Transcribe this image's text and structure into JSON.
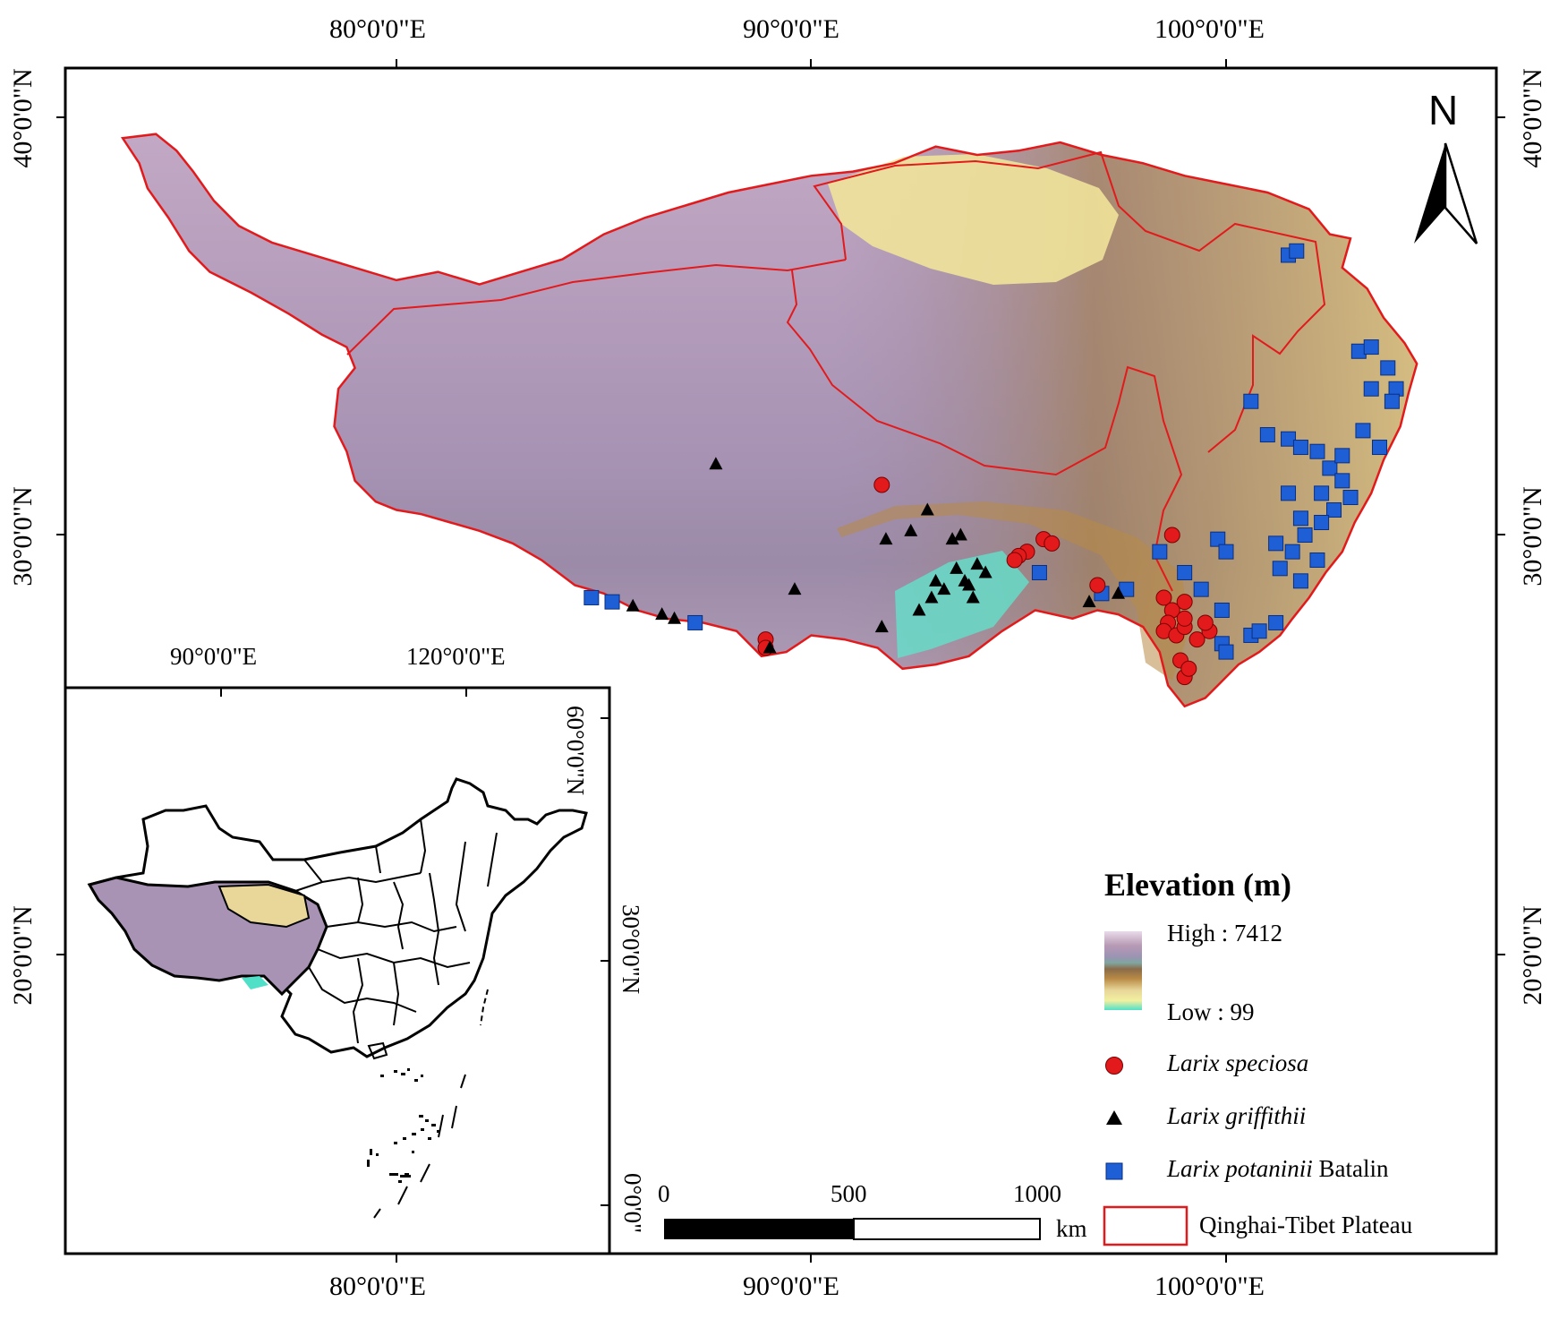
{
  "map": {
    "grid": {
      "lon_labels": [
        "80°0'0\"E",
        "90°0'0\"E",
        "100°0'0\"E"
      ],
      "lat_labels": [
        "40°0'0\"N",
        "30°0'0\"N",
        "20°0'0\"N"
      ]
    },
    "north_arrow": {
      "label": "N"
    },
    "inset": {
      "lon_labels": [
        "90°0'0\"E",
        "120°0'0\"E"
      ],
      "lat_labels": [
        "60°0'0\"N",
        "30°0'0\"N",
        "0°0'0\""
      ]
    },
    "scale_bar": {
      "labels": [
        "0",
        "500",
        "1000"
      ],
      "unit": "km"
    },
    "legend": {
      "title": "Elevation (m)",
      "high_label": "High : 7412",
      "low_label": "Low : 99",
      "ramp_colors": [
        "#dcc9dc",
        "#b79ab5",
        "#9c93b3",
        "#8aa6a0",
        "#8a6c4a",
        "#b88a45",
        "#e8d79a",
        "#f2f0a0",
        "#7fe3c8"
      ],
      "species": [
        {
          "italic": "Larix speciosa",
          "suffix": "",
          "color": "#e31a1c",
          "shape": "circle"
        },
        {
          "italic": "Larix griffithii",
          "suffix": "",
          "color": "#000000",
          "shape": "triangle"
        },
        {
          "italic": "Larix potaninii",
          "suffix": " Batalin",
          "color": "#1f5fd6",
          "shape": "square"
        }
      ],
      "boundary_label": "Qinghai-Tibet Plateau",
      "boundary_color": "#e31a1c"
    },
    "occurrences": {
      "Larix speciosa": [
        [
          91.7,
          31.2
        ],
        [
          95.6,
          29.9
        ],
        [
          95.8,
          29.8
        ],
        [
          95.2,
          29.6
        ],
        [
          95.0,
          29.5
        ],
        [
          94.9,
          29.4
        ],
        [
          96.9,
          28.8
        ],
        [
          98.7,
          30.0
        ],
        [
          98.5,
          28.5
        ],
        [
          98.7,
          28.2
        ],
        [
          98.6,
          27.9
        ],
        [
          98.5,
          27.7
        ],
        [
          98.8,
          27.6
        ],
        [
          99.0,
          28.4
        ],
        [
          99.0,
          27.8
        ],
        [
          99.3,
          27.5
        ],
        [
          99.6,
          27.7
        ],
        [
          98.9,
          27.0
        ],
        [
          99.0,
          26.6
        ],
        [
          99.1,
          26.8
        ],
        [
          88.9,
          27.5
        ],
        [
          88.9,
          27.3
        ],
        [
          99.0,
          28.0
        ],
        [
          99.5,
          27.9
        ]
      ],
      "Larix griffithii": [
        [
          87.7,
          31.7
        ],
        [
          92.8,
          30.6
        ],
        [
          92.4,
          30.1
        ],
        [
          91.8,
          29.9
        ],
        [
          93.4,
          29.9
        ],
        [
          93.6,
          30.0
        ],
        [
          93.5,
          29.2
        ],
        [
          93.0,
          28.9
        ],
        [
          93.2,
          28.7
        ],
        [
          93.8,
          28.8
        ],
        [
          94.2,
          29.1
        ],
        [
          89.6,
          28.7
        ],
        [
          92.6,
          28.2
        ],
        [
          92.9,
          28.5
        ],
        [
          93.9,
          28.5
        ],
        [
          85.7,
          28.3
        ],
        [
          86.4,
          28.1
        ],
        [
          86.7,
          28.0
        ],
        [
          91.7,
          27.8
        ],
        [
          89.0,
          27.3
        ],
        [
          96.7,
          28.4
        ],
        [
          97.4,
          28.6
        ],
        [
          93.7,
          28.9
        ],
        [
          94.0,
          29.3
        ]
      ],
      "Larix potaninii": [
        [
          101.5,
          36.7
        ],
        [
          101.7,
          36.8
        ],
        [
          103.2,
          34.4
        ],
        [
          103.5,
          34.5
        ],
        [
          103.9,
          34.0
        ],
        [
          104.1,
          33.5
        ],
        [
          104.0,
          33.2
        ],
        [
          100.6,
          33.2
        ],
        [
          101.0,
          32.4
        ],
        [
          101.5,
          32.3
        ],
        [
          101.8,
          32.1
        ],
        [
          102.2,
          32.0
        ],
        [
          102.5,
          31.6
        ],
        [
          102.8,
          31.3
        ],
        [
          103.0,
          30.9
        ],
        [
          102.6,
          30.6
        ],
        [
          102.3,
          30.3
        ],
        [
          101.9,
          30.0
        ],
        [
          101.6,
          29.6
        ],
        [
          101.3,
          29.2
        ],
        [
          101.8,
          28.9
        ],
        [
          102.2,
          29.4
        ],
        [
          103.3,
          32.5
        ],
        [
          103.7,
          32.1
        ],
        [
          101.2,
          27.9
        ],
        [
          100.6,
          27.6
        ],
        [
          99.9,
          27.4
        ],
        [
          100.0,
          27.2
        ],
        [
          99.0,
          29.1
        ],
        [
          98.4,
          29.6
        ],
        [
          99.8,
          29.9
        ],
        [
          100.0,
          29.6
        ],
        [
          84.7,
          28.5
        ],
        [
          85.2,
          28.4
        ],
        [
          87.2,
          27.9
        ],
        [
          95.5,
          29.1
        ],
        [
          97.0,
          28.6
        ],
        [
          97.6,
          28.7
        ],
        [
          101.8,
          30.4
        ],
        [
          102.3,
          31.0
        ],
        [
          103.5,
          33.5
        ],
        [
          102.8,
          31.9
        ],
        [
          101.5,
          31.0
        ],
        [
          101.2,
          29.8
        ],
        [
          100.8,
          27.7
        ],
        [
          99.4,
          28.7
        ],
        [
          99.9,
          28.2
        ]
      ]
    }
  }
}
